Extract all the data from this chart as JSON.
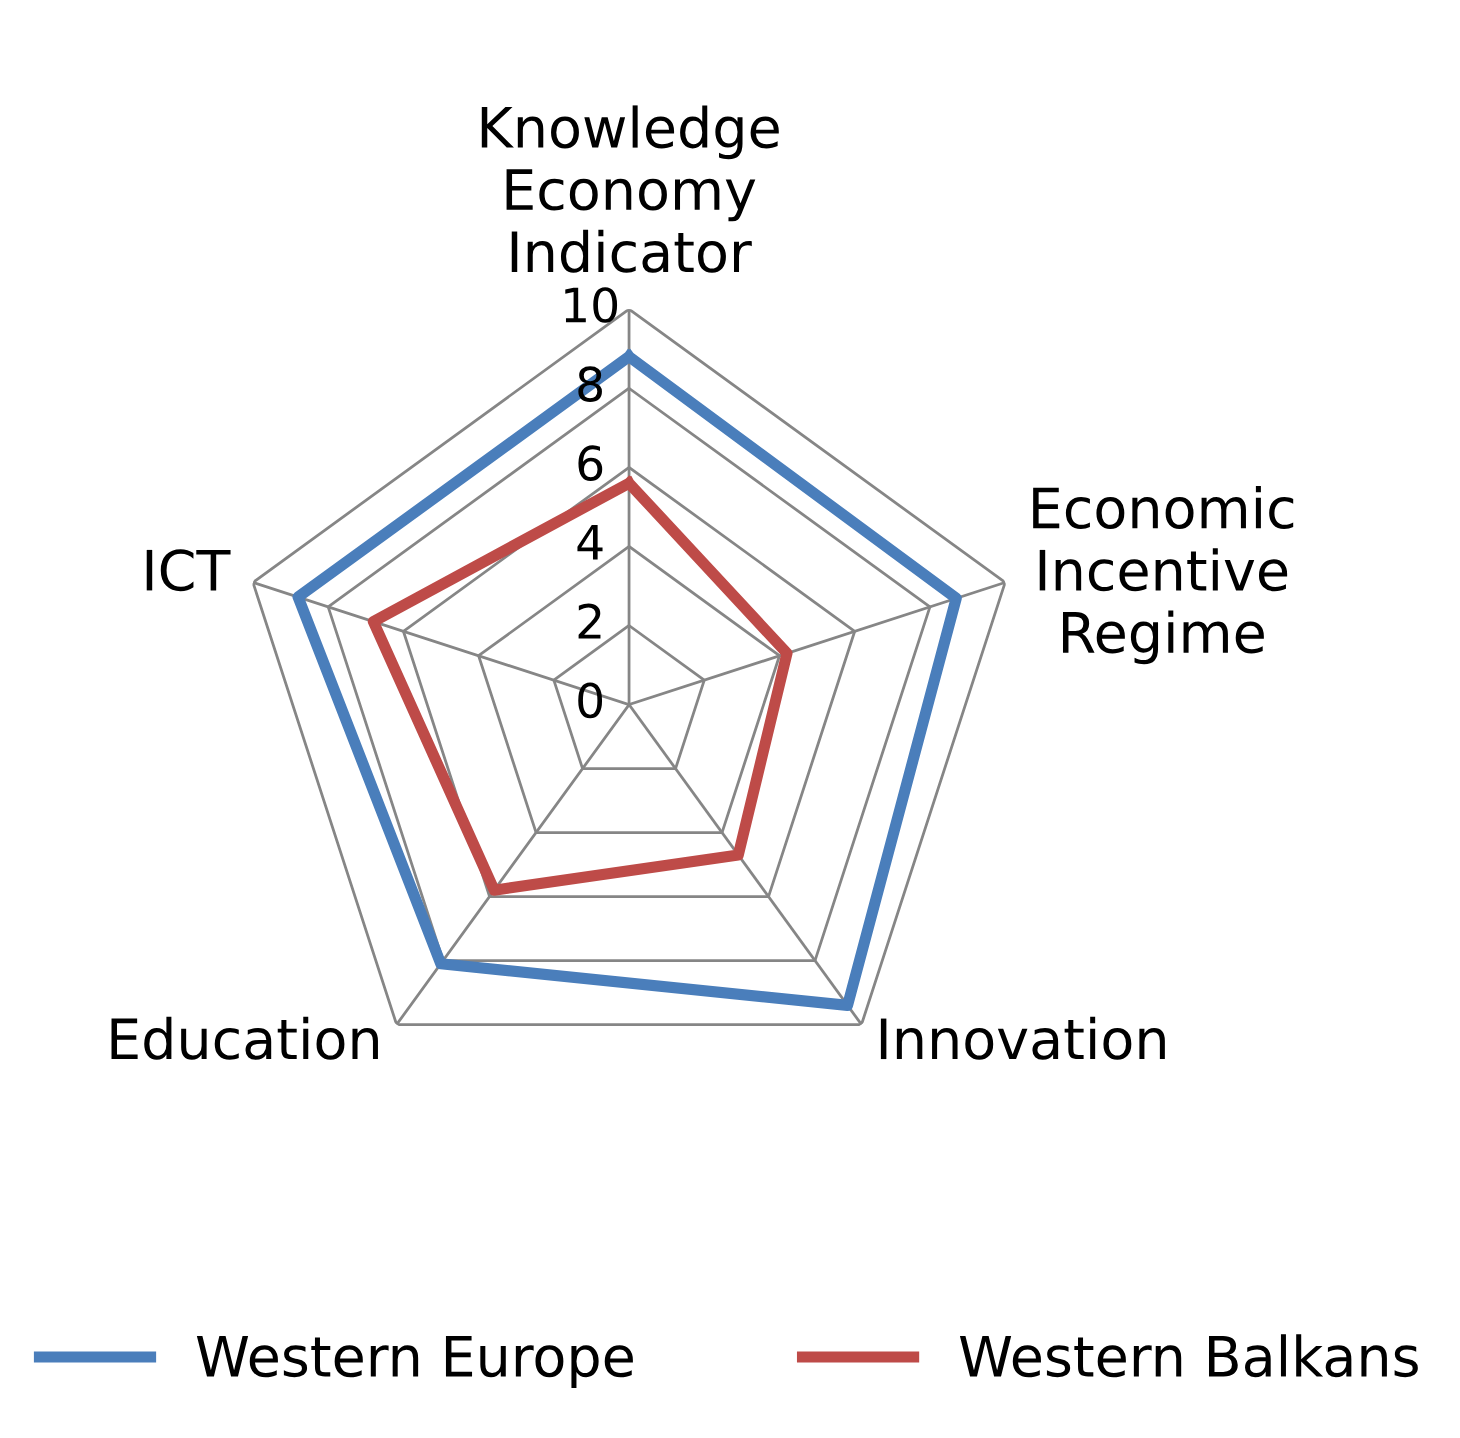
{
  "chart_data": {
    "type": "radar",
    "categories": [
      "Knowledge\nEconomy\nIndicator",
      "Economic\nIncentive\nRegime",
      "Innovation",
      "Education",
      "ICT"
    ],
    "series": [
      {
        "name": "Western Europe",
        "color": "#4a7ebb",
        "values": [
          8.8,
          8.7,
          9.4,
          8.1,
          8.8
        ]
      },
      {
        "name": "Western Balkans",
        "color": "#be4b48",
        "values": [
          5.6,
          4.2,
          4.7,
          5.8,
          6.8
        ]
      }
    ],
    "ylim": [
      0,
      10
    ],
    "yticks": [
      0,
      2,
      4,
      6,
      8,
      10
    ],
    "grid": true,
    "legend": "bottom",
    "marker": "none",
    "line_style": "solid"
  }
}
